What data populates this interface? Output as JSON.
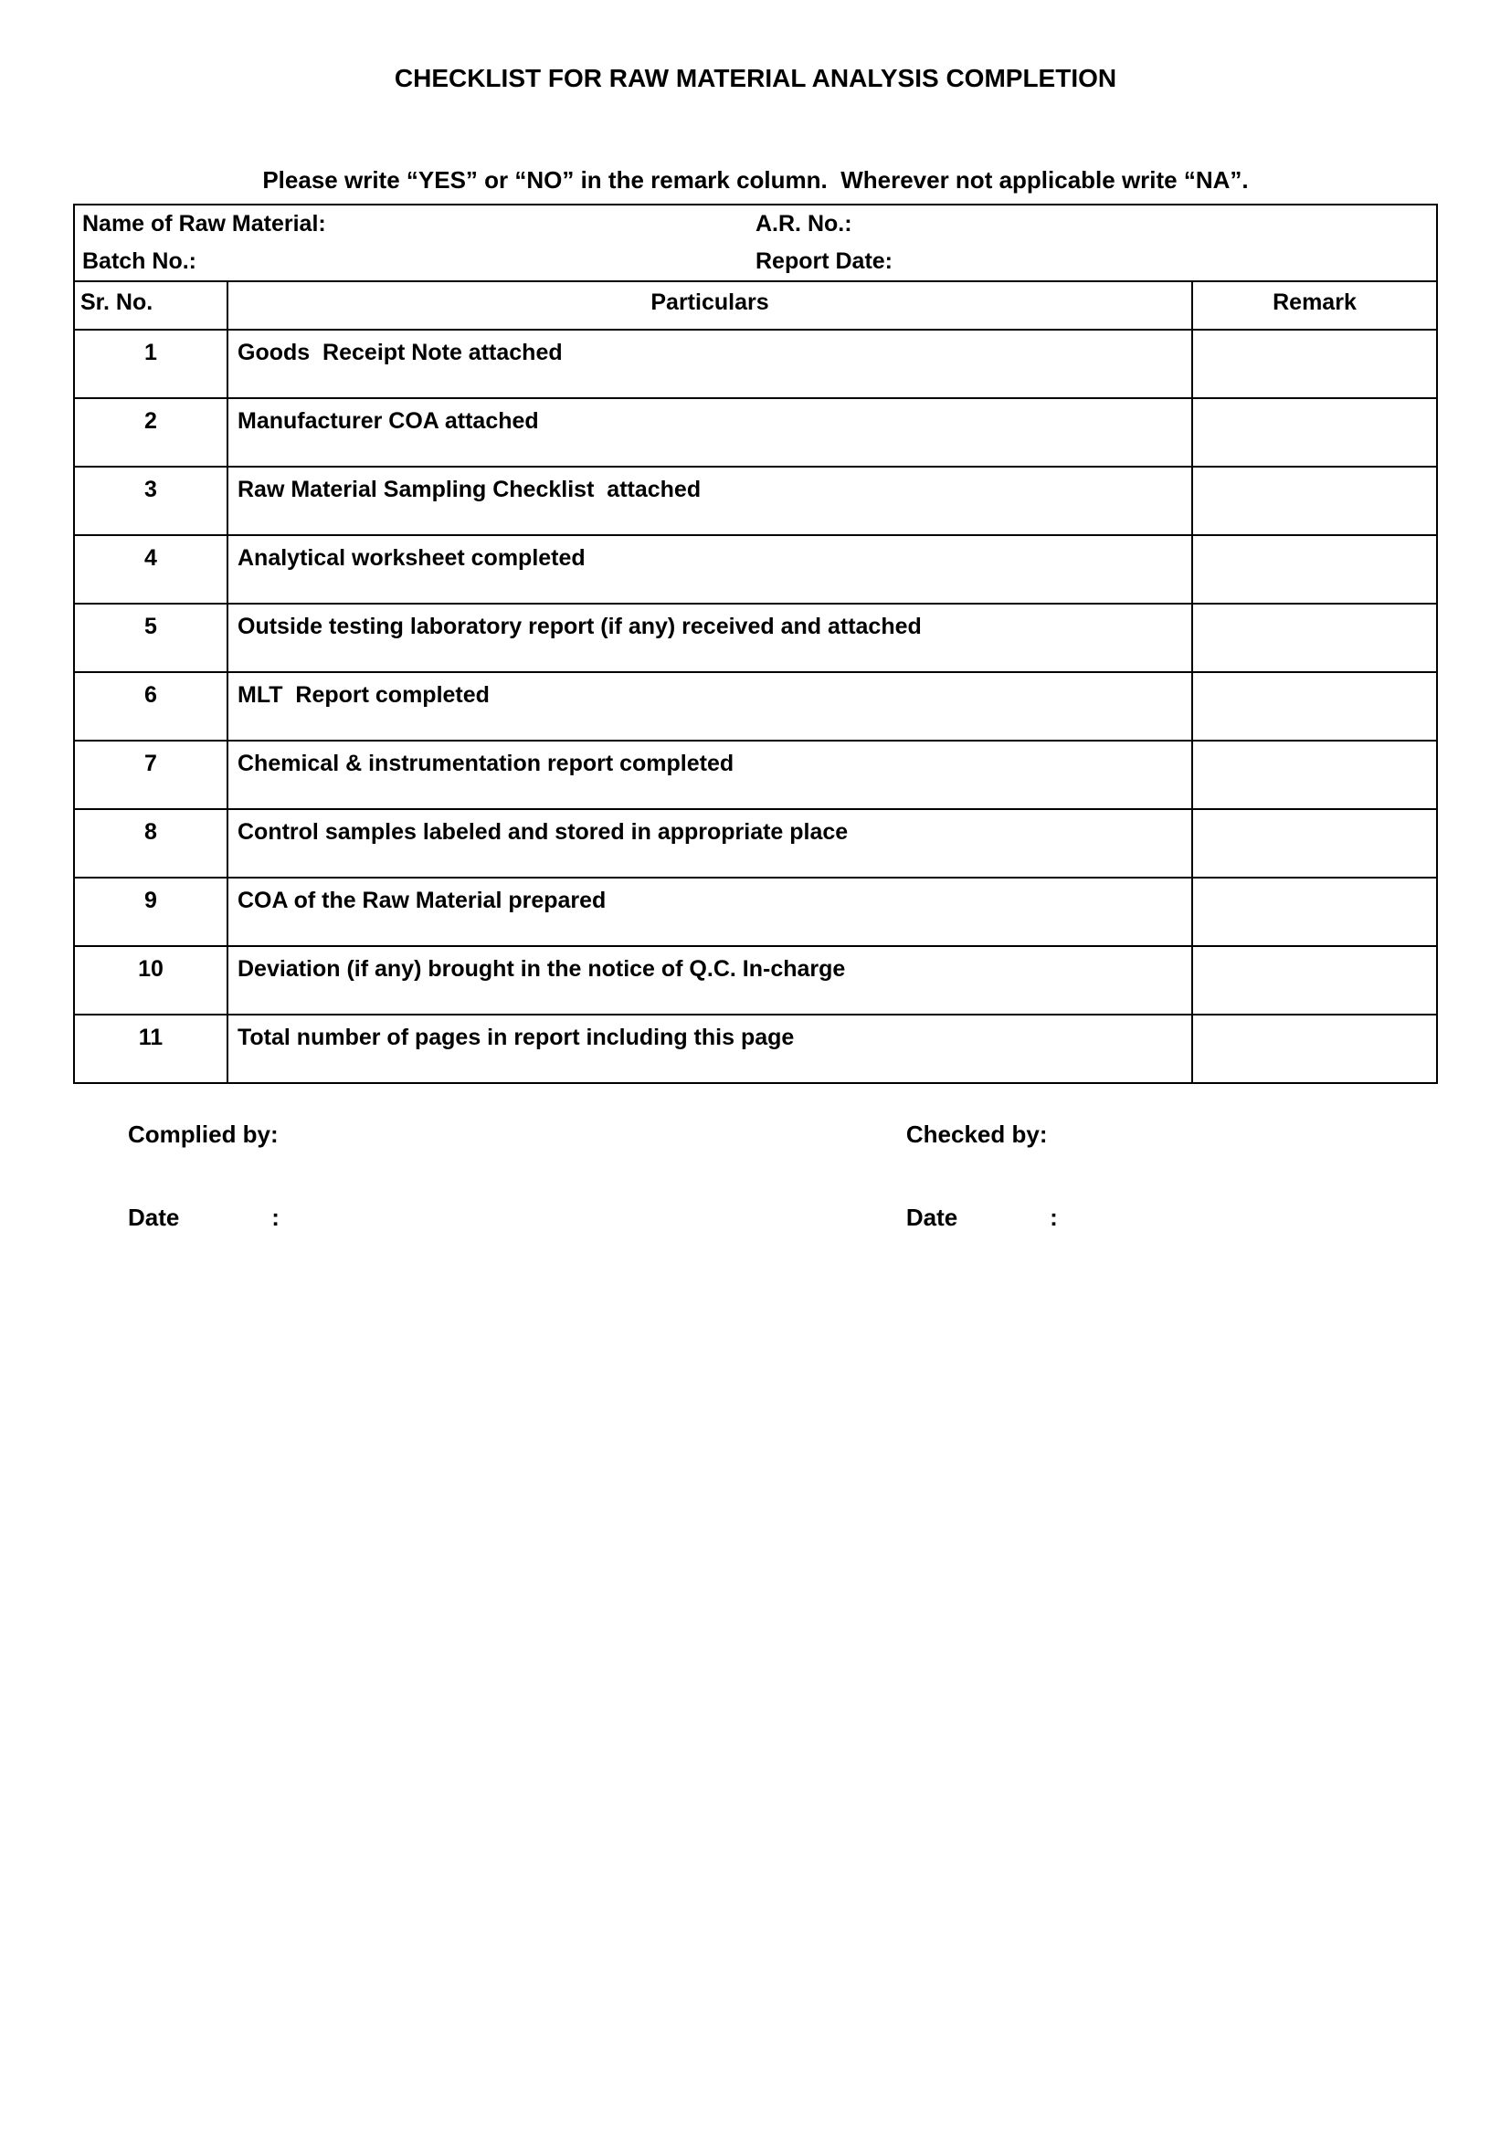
{
  "title": "CHECKLIST FOR RAW MATERIAL ANALYSIS COMPLETION",
  "instruction": "Please write “YES” or “NO” in the remark column.  Wherever not applicable write “NA”.",
  "header": {
    "name_label": "Name of Raw Material:",
    "ar_label": "A.R. No.:",
    "batch_label": "Batch No.:",
    "report_date_label": "Report Date:"
  },
  "columns": {
    "sr": "Sr. No.",
    "particulars": "Particulars",
    "remark": "Remark"
  },
  "rows": [
    {
      "sr": "1",
      "particulars": "Goods  Receipt Note attached",
      "remark": ""
    },
    {
      "sr": "2",
      "particulars": "Manufacturer COA attached",
      "remark": ""
    },
    {
      "sr": "3",
      "particulars": "Raw Material Sampling Checklist  attached",
      "remark": ""
    },
    {
      "sr": "4",
      "particulars": "Analytical worksheet completed",
      "remark": ""
    },
    {
      "sr": "5",
      "particulars": "Outside testing laboratory report (if any) received and attached",
      "remark": ""
    },
    {
      "sr": "6",
      "particulars": "MLT  Report completed",
      "remark": ""
    },
    {
      "sr": "7",
      "particulars": "Chemical & instrumentation report completed",
      "remark": ""
    },
    {
      "sr": "8",
      "particulars": "Control samples labeled and stored in appropriate place",
      "remark": ""
    },
    {
      "sr": "9",
      "particulars": "COA of the Raw Material prepared",
      "remark": ""
    },
    {
      "sr": "10",
      "particulars": "Deviation (if any) brought in the notice of Q.C. In-charge",
      "remark": ""
    },
    {
      "sr": "11",
      "particulars": "Total number of pages in report including this page",
      "remark": ""
    }
  ],
  "signatures": {
    "complied_by": "Complied by:",
    "checked_by": "Checked by:",
    "date_left": "Date",
    "date_right": "Date",
    "colon": ":"
  }
}
